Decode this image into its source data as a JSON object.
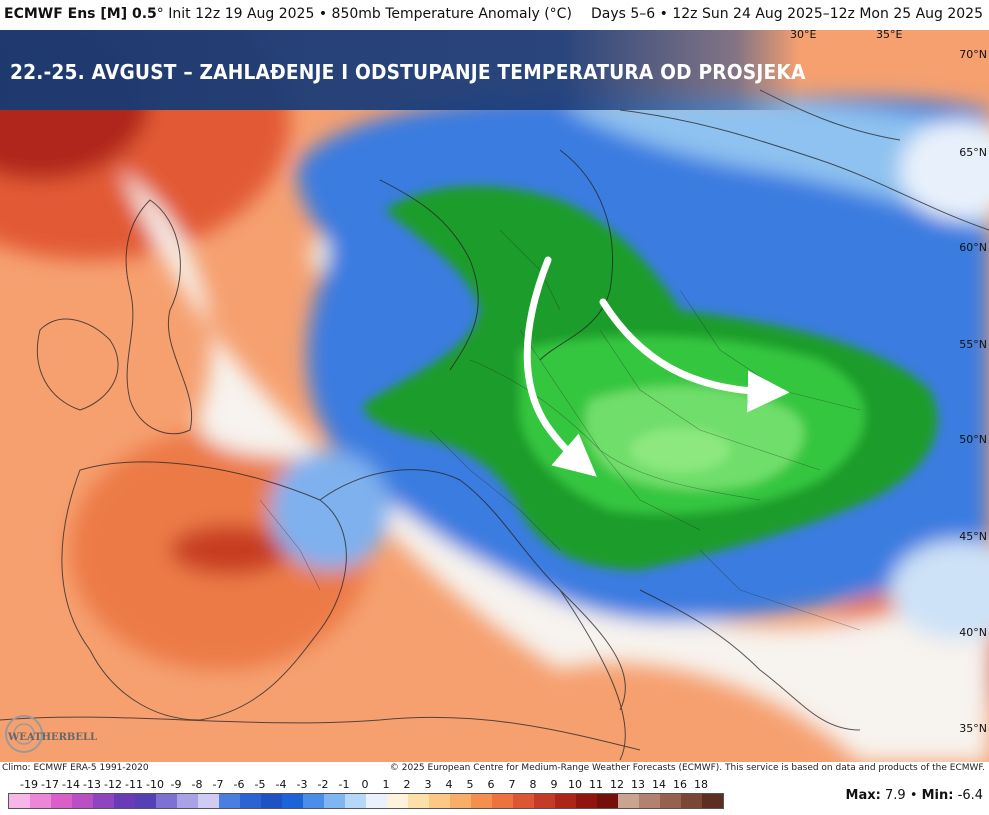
{
  "header": {
    "model": "ECMWF Ens [M] 0.5",
    "init": "° Init 12z 19 Aug 2025 • 850mb Temperature Anomaly (°C)",
    "valid": "Days 5–6 • 12z Sun 24 Aug 2025–12z Mon 25 Aug 2025"
  },
  "banner": {
    "title": "22.-25. AVGUST – ZAHLAĐENJE I ODSTUPANJE TEMPERATURA OD PROSJEKA"
  },
  "map": {
    "latitudes": [
      "70°N",
      "65°N",
      "60°N",
      "55°N",
      "50°N",
      "45°N",
      "40°N",
      "35°N"
    ],
    "longitudes": [
      "30°E",
      "35°E"
    ],
    "arrows": [
      "southward",
      "eastward"
    ]
  },
  "credits": {
    "climo": "Climo: ECMWF ERA-5 1991-2020",
    "copyright": "© 2025 European Centre for Medium-Range Weather Forecasts (ECMWF). This service is based on data and products of the ECMWF."
  },
  "logo": {
    "text": "WEATHERBELL"
  },
  "legend": {
    "ticks": [
      "-19",
      "-17",
      "-14",
      "-13",
      "-12",
      "-11",
      "-10",
      "-9",
      "-8",
      "-7",
      "-6",
      "-5",
      "-4",
      "-3",
      "-2",
      "-1",
      "0",
      "1",
      "2",
      "3",
      "4",
      "5",
      "6",
      "7",
      "8",
      "9",
      "10",
      "11",
      "12",
      "13",
      "14",
      "16",
      "18"
    ],
    "colors": [
      "#f7b6e8",
      "#ec86d6",
      "#d95ec8",
      "#b94fc2",
      "#8f45c0",
      "#6a3bb8",
      "#5540b4",
      "#7d72d4",
      "#a9a3e6",
      "#cfcbf2",
      "#4a7fe0",
      "#2c63d2",
      "#1d52c4",
      "#1c63d8",
      "#4a8ee8",
      "#7fb6f2",
      "#b6d8f8",
      "#e9f1fb",
      "#fdf3dc",
      "#fde0a8",
      "#fbc985",
      "#f8ad68",
      "#f3904f",
      "#ec7240",
      "#dc5633",
      "#c63b27",
      "#ad2419",
      "#8f150f",
      "#741009",
      "#c9a48e",
      "#b38170",
      "#96624f",
      "#7a4636",
      "#5c2f22"
    ],
    "max_label": "Max:",
    "max_value": "7.9",
    "min_label": "Min:",
    "min_value": "-6.4",
    "separator": "•"
  },
  "colors": {
    "warm_strong": "#c0301c",
    "warm": "#f08a50",
    "neutral": "#f6f4ef",
    "cold": "#2f6fd8",
    "very_cold": "#1e9c2c",
    "coldest": "#6fde6a",
    "banner": "#1d3c78"
  }
}
